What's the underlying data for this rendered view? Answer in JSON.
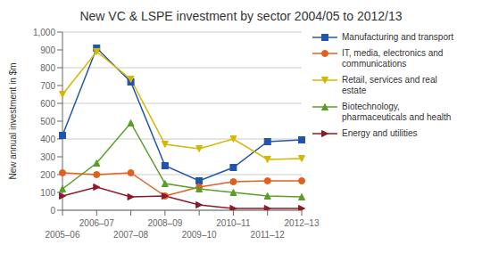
{
  "chart_data": {
    "type": "line",
    "title": "New VC & LSPE investment by sector 2004/05 to 2012/13",
    "ylabel": "New annual investment in $m",
    "categories": [
      "2005–06",
      "2006–07",
      "2007–08",
      "2008–09",
      "2009–10",
      "2010–11",
      "2011–12",
      "2012–13"
    ],
    "series": [
      {
        "name": "Manufacturing and transport",
        "color": "#2255aa",
        "marker": "square",
        "values": [
          420,
          910,
          720,
          250,
          165,
          240,
          385,
          395
        ]
      },
      {
        "name": "IT, media, electronics and\ncommunications",
        "color": "#e06020",
        "marker": "circle",
        "values": [
          210,
          200,
          210,
          80,
          130,
          160,
          165,
          165
        ]
      },
      {
        "name": "Retail, services and real\nestate",
        "color": "#d4b800",
        "marker": "triangle-down",
        "values": [
          650,
          890,
          735,
          370,
          345,
          400,
          285,
          290
        ]
      },
      {
        "name": "Biotechnology,\npharmaceuticals and health",
        "color": "#5a9e28",
        "marker": "triangle-up",
        "values": [
          120,
          265,
          490,
          150,
          120,
          100,
          80,
          75
        ]
      },
      {
        "name": "Energy and utilities",
        "color": "#8b1a2a",
        "marker": "triangle-right",
        "values": [
          80,
          130,
          75,
          80,
          30,
          10,
          10,
          10
        ]
      }
    ],
    "ylim": [
      0,
      1000
    ],
    "yticks": [
      0,
      100,
      200,
      300,
      400,
      500,
      600,
      700,
      800,
      900,
      {
        "value": 1000,
        "label": "1,000"
      }
    ],
    "grid": true,
    "legend": "right"
  }
}
